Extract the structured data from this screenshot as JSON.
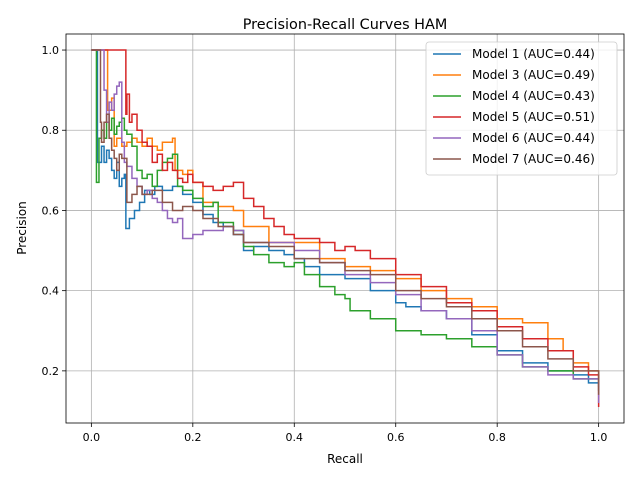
{
  "chart_data": {
    "type": "line",
    "title": "Precision-Recall Curves HAM",
    "xlabel": "Recall",
    "ylabel": "Precision",
    "xlim": [
      -0.05,
      1.05
    ],
    "ylim": [
      0.07,
      1.04
    ],
    "xticks": [
      0.0,
      0.2,
      0.4,
      0.6,
      0.8,
      1.0
    ],
    "xtick_labels": [
      "0.0",
      "0.2",
      "0.4",
      "0.6",
      "0.8",
      "1.0"
    ],
    "yticks": [
      0.2,
      0.4,
      0.6,
      0.8,
      1.0
    ],
    "ytick_labels": [
      "0.2",
      "0.4",
      "0.6",
      "0.8",
      "1.0"
    ],
    "grid": true,
    "legend_position": "top-right",
    "series": [
      {
        "name": "Model 1 (AUC=0.44)",
        "color": "#1f77b4",
        "points": [
          [
            0.0,
            1.0
          ],
          [
            0.01,
            1.0
          ],
          [
            0.012,
            0.72
          ],
          [
            0.02,
            0.76
          ],
          [
            0.025,
            0.72
          ],
          [
            0.03,
            0.75
          ],
          [
            0.035,
            0.73
          ],
          [
            0.04,
            0.7
          ],
          [
            0.045,
            0.68
          ],
          [
            0.05,
            0.72
          ],
          [
            0.055,
            0.66
          ],
          [
            0.06,
            0.68
          ],
          [
            0.065,
            0.69
          ],
          [
            0.068,
            0.555
          ],
          [
            0.075,
            0.58
          ],
          [
            0.085,
            0.6
          ],
          [
            0.095,
            0.62
          ],
          [
            0.105,
            0.65
          ],
          [
            0.115,
            0.64
          ],
          [
            0.125,
            0.66
          ],
          [
            0.14,
            0.65
          ],
          [
            0.16,
            0.66
          ],
          [
            0.18,
            0.64
          ],
          [
            0.2,
            0.62
          ],
          [
            0.22,
            0.59
          ],
          [
            0.24,
            0.57
          ],
          [
            0.26,
            0.56
          ],
          [
            0.28,
            0.54
          ],
          [
            0.3,
            0.5
          ],
          [
            0.32,
            0.51
          ],
          [
            0.35,
            0.5
          ],
          [
            0.38,
            0.49
          ],
          [
            0.4,
            0.48
          ],
          [
            0.42,
            0.46
          ],
          [
            0.45,
            0.44
          ],
          [
            0.5,
            0.43
          ],
          [
            0.55,
            0.4
          ],
          [
            0.6,
            0.37
          ],
          [
            0.62,
            0.36
          ],
          [
            0.65,
            0.35
          ],
          [
            0.7,
            0.33
          ],
          [
            0.75,
            0.29
          ],
          [
            0.8,
            0.25
          ],
          [
            0.85,
            0.22
          ],
          [
            0.9,
            0.2
          ],
          [
            0.95,
            0.19
          ],
          [
            0.98,
            0.17
          ],
          [
            1.0,
            0.16
          ]
        ]
      },
      {
        "name": "Model 3 (AUC=0.49)",
        "color": "#ff7f0e",
        "points": [
          [
            0.0,
            1.0
          ],
          [
            0.03,
            1.0
          ],
          [
            0.032,
            0.85
          ],
          [
            0.04,
            0.88
          ],
          [
            0.045,
            0.76
          ],
          [
            0.05,
            0.78
          ],
          [
            0.06,
            0.76
          ],
          [
            0.07,
            0.77
          ],
          [
            0.08,
            0.78
          ],
          [
            0.09,
            0.77
          ],
          [
            0.1,
            0.76
          ],
          [
            0.11,
            0.78
          ],
          [
            0.12,
            0.76
          ],
          [
            0.13,
            0.75
          ],
          [
            0.14,
            0.77
          ],
          [
            0.16,
            0.78
          ],
          [
            0.165,
            0.7
          ],
          [
            0.18,
            0.69
          ],
          [
            0.19,
            0.7
          ],
          [
            0.2,
            0.67
          ],
          [
            0.22,
            0.62
          ],
          [
            0.25,
            0.61
          ],
          [
            0.28,
            0.6
          ],
          [
            0.3,
            0.56
          ],
          [
            0.35,
            0.52
          ],
          [
            0.4,
            0.52
          ],
          [
            0.45,
            0.48
          ],
          [
            0.5,
            0.46
          ],
          [
            0.55,
            0.45
          ],
          [
            0.6,
            0.43
          ],
          [
            0.65,
            0.4
          ],
          [
            0.7,
            0.38
          ],
          [
            0.75,
            0.36
          ],
          [
            0.8,
            0.33
          ],
          [
            0.85,
            0.32
          ],
          [
            0.9,
            0.28
          ],
          [
            0.93,
            0.25
          ],
          [
            0.95,
            0.22
          ],
          [
            0.98,
            0.2
          ],
          [
            1.0,
            0.18
          ]
        ]
      },
      {
        "name": "Model 4 (AUC=0.43)",
        "color": "#2ca02c",
        "points": [
          [
            0.0,
            1.0
          ],
          [
            0.008,
            1.0
          ],
          [
            0.01,
            0.67
          ],
          [
            0.015,
            0.78
          ],
          [
            0.02,
            0.8
          ],
          [
            0.025,
            0.78
          ],
          [
            0.03,
            0.82
          ],
          [
            0.035,
            0.8
          ],
          [
            0.04,
            0.83
          ],
          [
            0.045,
            0.79
          ],
          [
            0.05,
            0.81
          ],
          [
            0.055,
            0.82
          ],
          [
            0.06,
            0.83
          ],
          [
            0.065,
            0.8
          ],
          [
            0.07,
            0.79
          ],
          [
            0.08,
            0.76
          ],
          [
            0.09,
            0.7
          ],
          [
            0.1,
            0.68
          ],
          [
            0.11,
            0.69
          ],
          [
            0.12,
            0.66
          ],
          [
            0.13,
            0.7
          ],
          [
            0.14,
            0.72
          ],
          [
            0.15,
            0.73
          ],
          [
            0.16,
            0.74
          ],
          [
            0.17,
            0.66
          ],
          [
            0.18,
            0.65
          ],
          [
            0.2,
            0.63
          ],
          [
            0.22,
            0.61
          ],
          [
            0.24,
            0.62
          ],
          [
            0.25,
            0.57
          ],
          [
            0.28,
            0.55
          ],
          [
            0.3,
            0.51
          ],
          [
            0.32,
            0.49
          ],
          [
            0.35,
            0.47
          ],
          [
            0.38,
            0.46
          ],
          [
            0.4,
            0.47
          ],
          [
            0.42,
            0.44
          ],
          [
            0.45,
            0.41
          ],
          [
            0.48,
            0.39
          ],
          [
            0.5,
            0.38
          ],
          [
            0.51,
            0.35
          ],
          [
            0.55,
            0.33
          ],
          [
            0.6,
            0.3
          ],
          [
            0.65,
            0.29
          ],
          [
            0.7,
            0.28
          ],
          [
            0.75,
            0.26
          ],
          [
            0.8,
            0.24
          ],
          [
            0.85,
            0.21
          ],
          [
            0.9,
            0.2
          ],
          [
            0.95,
            0.18
          ],
          [
            1.0,
            0.15
          ]
        ]
      },
      {
        "name": "Model 5 (AUC=0.51)",
        "color": "#d62728",
        "points": [
          [
            0.0,
            1.0
          ],
          [
            0.065,
            1.0
          ],
          [
            0.068,
            0.84
          ],
          [
            0.07,
            0.89
          ],
          [
            0.075,
            0.82
          ],
          [
            0.08,
            0.84
          ],
          [
            0.09,
            0.8
          ],
          [
            0.1,
            0.77
          ],
          [
            0.11,
            0.76
          ],
          [
            0.12,
            0.72
          ],
          [
            0.13,
            0.74
          ],
          [
            0.14,
            0.7
          ],
          [
            0.15,
            0.72
          ],
          [
            0.16,
            0.7
          ],
          [
            0.17,
            0.68
          ],
          [
            0.18,
            0.67
          ],
          [
            0.19,
            0.69
          ],
          [
            0.2,
            0.67
          ],
          [
            0.22,
            0.66
          ],
          [
            0.24,
            0.65
          ],
          [
            0.26,
            0.66
          ],
          [
            0.28,
            0.67
          ],
          [
            0.3,
            0.63
          ],
          [
            0.32,
            0.61
          ],
          [
            0.34,
            0.58
          ],
          [
            0.36,
            0.56
          ],
          [
            0.38,
            0.54
          ],
          [
            0.4,
            0.53
          ],
          [
            0.45,
            0.52
          ],
          [
            0.48,
            0.5
          ],
          [
            0.5,
            0.51
          ],
          [
            0.52,
            0.5
          ],
          [
            0.55,
            0.48
          ],
          [
            0.6,
            0.44
          ],
          [
            0.65,
            0.41
          ],
          [
            0.7,
            0.37
          ],
          [
            0.75,
            0.35
          ],
          [
            0.8,
            0.31
          ],
          [
            0.85,
            0.28
          ],
          [
            0.9,
            0.25
          ],
          [
            0.95,
            0.21
          ],
          [
            0.98,
            0.19
          ],
          [
            1.0,
            0.11
          ]
        ]
      },
      {
        "name": "Model 6 (AUC=0.44)",
        "color": "#9467bd",
        "points": [
          [
            0.0,
            1.0
          ],
          [
            0.02,
            1.0
          ],
          [
            0.025,
            0.9
          ],
          [
            0.03,
            0.82
          ],
          [
            0.035,
            0.87
          ],
          [
            0.04,
            0.85
          ],
          [
            0.045,
            0.89
          ],
          [
            0.05,
            0.91
          ],
          [
            0.055,
            0.92
          ],
          [
            0.06,
            0.77
          ],
          [
            0.065,
            0.72
          ],
          [
            0.07,
            0.71
          ],
          [
            0.08,
            0.68
          ],
          [
            0.09,
            0.66
          ],
          [
            0.1,
            0.64
          ],
          [
            0.11,
            0.65
          ],
          [
            0.12,
            0.63
          ],
          [
            0.13,
            0.62
          ],
          [
            0.14,
            0.6
          ],
          [
            0.15,
            0.58
          ],
          [
            0.16,
            0.57
          ],
          [
            0.17,
            0.58
          ],
          [
            0.18,
            0.53
          ],
          [
            0.2,
            0.54
          ],
          [
            0.22,
            0.55
          ],
          [
            0.24,
            0.55
          ],
          [
            0.26,
            0.56
          ],
          [
            0.28,
            0.55
          ],
          [
            0.3,
            0.52
          ],
          [
            0.35,
            0.52
          ],
          [
            0.4,
            0.5
          ],
          [
            0.45,
            0.47
          ],
          [
            0.5,
            0.44
          ],
          [
            0.55,
            0.42
          ],
          [
            0.6,
            0.39
          ],
          [
            0.65,
            0.35
          ],
          [
            0.7,
            0.33
          ],
          [
            0.75,
            0.3
          ],
          [
            0.8,
            0.24
          ],
          [
            0.85,
            0.21
          ],
          [
            0.9,
            0.19
          ],
          [
            0.95,
            0.18
          ],
          [
            1.0,
            0.12
          ]
        ]
      },
      {
        "name": "Model 7 (AUC=0.46)",
        "color": "#8c564b",
        "points": [
          [
            0.0,
            1.0
          ],
          [
            0.015,
            1.0
          ],
          [
            0.018,
            0.82
          ],
          [
            0.02,
            0.77
          ],
          [
            0.025,
            0.82
          ],
          [
            0.03,
            0.84
          ],
          [
            0.035,
            0.78
          ],
          [
            0.04,
            0.75
          ],
          [
            0.045,
            0.73
          ],
          [
            0.05,
            0.7
          ],
          [
            0.055,
            0.74
          ],
          [
            0.06,
            0.73
          ],
          [
            0.07,
            0.62
          ],
          [
            0.08,
            0.64
          ],
          [
            0.09,
            0.66
          ],
          [
            0.1,
            0.64
          ],
          [
            0.12,
            0.65
          ],
          [
            0.14,
            0.62
          ],
          [
            0.16,
            0.6
          ],
          [
            0.18,
            0.61
          ],
          [
            0.2,
            0.6
          ],
          [
            0.22,
            0.58
          ],
          [
            0.25,
            0.56
          ],
          [
            0.28,
            0.54
          ],
          [
            0.3,
            0.52
          ],
          [
            0.35,
            0.51
          ],
          [
            0.4,
            0.48
          ],
          [
            0.45,
            0.47
          ],
          [
            0.5,
            0.45
          ],
          [
            0.55,
            0.44
          ],
          [
            0.6,
            0.4
          ],
          [
            0.65,
            0.38
          ],
          [
            0.7,
            0.36
          ],
          [
            0.75,
            0.33
          ],
          [
            0.8,
            0.3
          ],
          [
            0.85,
            0.26
          ],
          [
            0.9,
            0.23
          ],
          [
            0.95,
            0.2
          ],
          [
            1.0,
            0.14
          ]
        ]
      }
    ]
  }
}
